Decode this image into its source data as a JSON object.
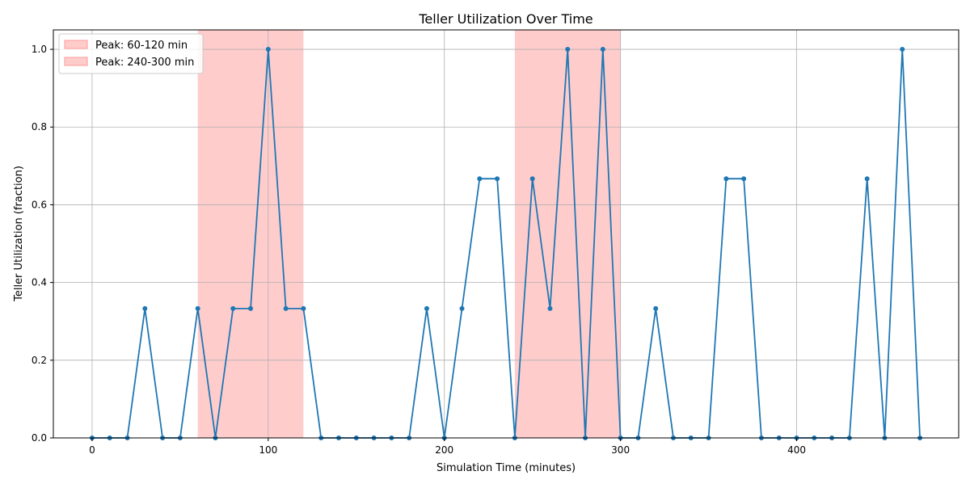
{
  "chart_data": {
    "type": "line",
    "title": "Teller Utilization Over Time",
    "xlabel": "Simulation Time (minutes)",
    "ylabel": "Teller Utilization (fraction)",
    "xlim": [
      -22,
      492
    ],
    "ylim": [
      0,
      1.05
    ],
    "xticks": [
      0,
      100,
      200,
      300,
      400
    ],
    "yticks": [
      0.0,
      0.2,
      0.4,
      0.6,
      0.8,
      1.0
    ],
    "ytick_labels": [
      "0.0",
      "0.2",
      "0.4",
      "0.6",
      "0.8",
      "1.0"
    ],
    "grid": true,
    "legend_position": "upper-left",
    "shaded_regions": [
      {
        "label": "Peak: 60-120 min",
        "x": [
          60,
          120
        ],
        "color": "#ff9999"
      },
      {
        "label": "Peak: 240-300 min",
        "x": [
          240,
          300
        ],
        "color": "#ff9999"
      }
    ],
    "series": [
      {
        "color": "#1f77b4",
        "x": [
          0,
          10,
          20,
          30,
          40,
          50,
          60,
          70,
          80,
          90,
          100,
          110,
          120,
          130,
          140,
          150,
          160,
          170,
          180,
          190,
          200,
          210,
          220,
          230,
          240,
          250,
          260,
          270,
          280,
          290,
          300,
          310,
          320,
          330,
          340,
          350,
          360,
          370,
          380,
          390,
          400,
          410,
          420,
          430,
          440,
          450,
          460,
          470
        ],
        "y": [
          0,
          0,
          0,
          0.333,
          0,
          0,
          0.333,
          0,
          0.333,
          0.333,
          1.0,
          0.333,
          0.333,
          0,
          0,
          0,
          0,
          0,
          0,
          0.333,
          0,
          0.333,
          0.667,
          0.667,
          0,
          0.667,
          0.333,
          1.0,
          0,
          1.0,
          0,
          0,
          0.333,
          0,
          0,
          0,
          0.667,
          0.667,
          0,
          0,
          0,
          0,
          0,
          0,
          0.667,
          0,
          1.0,
          0
        ]
      }
    ]
  }
}
